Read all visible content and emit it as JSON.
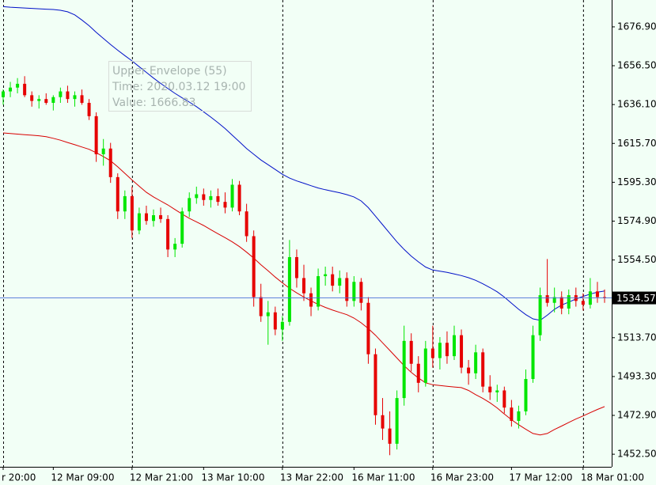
{
  "chart_data": {
    "type": "candlestick",
    "categories": [
      "r 20:00",
      null,
      null,
      null,
      null,
      null,
      null,
      "12 Mar 09:00",
      null,
      null,
      null,
      null,
      null,
      null,
      null,
      null,
      null,
      null,
      "12 Mar 21:00",
      null,
      null,
      null,
      null,
      null,
      null,
      null,
      null,
      null,
      "13 Mar 10:00",
      null,
      null,
      null,
      null,
      null,
      null,
      null,
      null,
      null,
      null,
      "13 Mar 22:00",
      null,
      null,
      null,
      null,
      null,
      null,
      null,
      null,
      null,
      "16 Mar 11:00",
      null,
      null,
      null,
      null,
      null,
      null,
      null,
      null,
      null,
      null,
      "16 Mar 23:00",
      null,
      null,
      null,
      null,
      null,
      null,
      null,
      null,
      null,
      null,
      "17 Mar 12:00",
      null,
      null,
      null,
      null,
      null,
      null,
      null,
      null,
      null,
      "18 Mar 01:00",
      null,
      null,
      null
    ],
    "open": [
      1640,
      1643,
      1645,
      1647,
      1641,
      1638,
      1639,
      1637,
      1640,
      1643,
      1639,
      1641,
      1637,
      1630,
      1610,
      1613,
      1598,
      1580,
      1588,
      1570,
      1579,
      1575,
      1578,
      1576,
      1560,
      1563,
      1580,
      1587,
      1589,
      1586,
      1588,
      1585,
      1582,
      1594,
      1580,
      1567,
      1535,
      1525,
      1527,
      1518,
      1522,
      1556,
      1545,
      1537,
      1530,
      1546,
      1547,
      1541,
      1545,
      1533,
      1543,
      1532,
      1505,
      1473,
      1466,
      1458,
      1482,
      1512,
      1500,
      1490,
      1508,
      1503,
      1511,
      1504,
      1515,
      1498,
      1495,
      1506,
      1488,
      1485,
      1486,
      1477,
      1470,
      1475,
      1492,
      1515,
      1536,
      1532,
      1535,
      1529,
      1536,
      1533,
      1531,
      1538,
      1535
    ],
    "high": [
      1644,
      1648,
      1650,
      1651,
      1643,
      1641,
      1642,
      1641,
      1645,
      1646,
      1643,
      1644,
      1639,
      1632,
      1618,
      1616,
      1600,
      1591,
      1593,
      1582,
      1583,
      1581,
      1582,
      1578,
      1566,
      1582,
      1590,
      1593,
      1592,
      1591,
      1592,
      1590,
      1597,
      1596,
      1584,
      1570,
      1542,
      1533,
      1530,
      1525,
      1565,
      1560,
      1552,
      1540,
      1550,
      1551,
      1551,
      1549,
      1548,
      1546,
      1545,
      1535,
      1508,
      1482,
      1475,
      1486,
      1520,
      1516,
      1504,
      1512,
      1520,
      1514,
      1517,
      1520,
      1518,
      1502,
      1510,
      1508,
      1494,
      1489,
      1488,
      1481,
      1478,
      1497,
      1520,
      1540,
      1555,
      1540,
      1538,
      1539,
      1540,
      1537,
      1545,
      1543,
      1539
    ],
    "low": [
      1636,
      1640,
      1642,
      1640,
      1635,
      1634,
      1636,
      1633,
      1637,
      1637,
      1635,
      1636,
      1628,
      1606,
      1604,
      1595,
      1576,
      1576,
      1566,
      1568,
      1573,
      1572,
      1574,
      1556,
      1556,
      1561,
      1577,
      1584,
      1583,
      1582,
      1583,
      1579,
      1580,
      1578,
      1564,
      1530,
      1522,
      1510,
      1515,
      1512,
      1520,
      1540,
      1533,
      1525,
      1528,
      1541,
      1538,
      1537,
      1530,
      1530,
      1528,
      1500,
      1468,
      1460,
      1452,
      1455,
      1478,
      1496,
      1485,
      1488,
      1498,
      1497,
      1500,
      1502,
      1495,
      1489,
      1492,
      1485,
      1481,
      1480,
      1474,
      1467,
      1466,
      1473,
      1490,
      1512,
      1530,
      1527,
      1526,
      1526,
      1530,
      1528,
      1529,
      1532,
      1532
    ],
    "close": [
      1643,
      1645,
      1647,
      1641,
      1638,
      1639,
      1637,
      1640,
      1643,
      1639,
      1641,
      1637,
      1630,
      1610,
      1613,
      1598,
      1580,
      1588,
      1570,
      1579,
      1575,
      1578,
      1576,
      1560,
      1563,
      1580,
      1587,
      1589,
      1586,
      1588,
      1585,
      1582,
      1594,
      1580,
      1567,
      1535,
      1525,
      1527,
      1518,
      1522,
      1556,
      1545,
      1537,
      1530,
      1546,
      1547,
      1541,
      1545,
      1533,
      1543,
      1532,
      1505,
      1473,
      1466,
      1458,
      1482,
      1512,
      1500,
      1490,
      1508,
      1503,
      1511,
      1504,
      1515,
      1498,
      1495,
      1506,
      1488,
      1485,
      1486,
      1477,
      1470,
      1475,
      1492,
      1515,
      1536,
      1532,
      1535,
      1529,
      1536,
      1533,
      1531,
      1538,
      1535,
      1534.57
    ],
    "up_color": "#00e600",
    "down_color": "#e60000",
    "lines": [
      {
        "color": "#0010c8",
        "values": [
          1687.5,
          1687.2,
          1687,
          1686.8,
          1686.6,
          1686.4,
          1686.2,
          1686,
          1685.6,
          1684.8,
          1683.2,
          1680.5,
          1677.5,
          1674,
          1670.8,
          1667.6,
          1664.6,
          1661.8,
          1659,
          1656,
          1653,
          1650,
          1647.2,
          1644.5,
          1642,
          1639.6,
          1637.4,
          1635,
          1632.3,
          1629.5,
          1626.6,
          1623.5,
          1620,
          1616.5,
          1613,
          1610,
          1607,
          1604.5,
          1602,
          1599.5,
          1597.5,
          1596,
          1594.8,
          1593.5,
          1592.3,
          1591.4,
          1590.6,
          1589.8,
          1588.8,
          1587.6,
          1585.5,
          1582,
          1577.5,
          1573,
          1568.5,
          1564,
          1560,
          1556.5,
          1553.5,
          1550.8,
          1549.2,
          1548.6,
          1548,
          1547.2,
          1546.3,
          1545.2,
          1543.8,
          1542,
          1540,
          1537.8,
          1535,
          1531.8,
          1528.6,
          1525.8,
          1523.6,
          1522.8,
          1525.5,
          1528.6,
          1530.8,
          1532.4,
          1534,
          1535.4,
          1536.6,
          1537.6,
          1538.2
        ]
      },
      {
        "color": "#d80000",
        "values": [
          1621.2,
          1620.9,
          1620.6,
          1620.3,
          1620,
          1619.7,
          1619.2,
          1618.4,
          1617.4,
          1616.2,
          1615,
          1613.8,
          1612.6,
          1610.8,
          1608.8,
          1606.6,
          1603.4,
          1600,
          1596.5,
          1593.2,
          1590,
          1587.6,
          1585.5,
          1583.4,
          1581,
          1578.6,
          1576.4,
          1574.5,
          1572.6,
          1570.4,
          1568.3,
          1566.2,
          1564,
          1561.5,
          1558.6,
          1555.5,
          1552,
          1548.8,
          1545.5,
          1542.5,
          1539.6,
          1537.2,
          1535,
          1533,
          1531.2,
          1529.6,
          1528.2,
          1527,
          1525.8,
          1524,
          1521.5,
          1518.5,
          1515,
          1511,
          1507,
          1503,
          1499,
          1495.5,
          1492.5,
          1490,
          1489,
          1488.6,
          1488.2,
          1487.8,
          1487.5,
          1486,
          1483.8,
          1481.8,
          1479.5,
          1476.8,
          1473.6,
          1470.6,
          1468,
          1465.6,
          1463.4,
          1462.6,
          1463.4,
          1465.5,
          1467.3,
          1469.2,
          1471,
          1472.6,
          1474.3,
          1476,
          1477.5
        ]
      }
    ],
    "ylim": [
      1445.9,
      1691.0
    ],
    "yticks": [
      {
        "value": 1676.9,
        "label": "1676.90"
      },
      {
        "value": 1656.5,
        "label": "1656.50"
      },
      {
        "value": 1636.1,
        "label": "1636.10"
      },
      {
        "value": 1615.7,
        "label": "1615.70"
      },
      {
        "value": 1595.3,
        "label": "1595.30"
      },
      {
        "value": 1574.9,
        "label": "1574.90"
      },
      {
        "value": 1554.5,
        "label": "1554.50"
      },
      {
        "value": 1513.7,
        "label": "1513.70"
      },
      {
        "value": 1493.3,
        "label": "1493.30"
      },
      {
        "value": 1472.9,
        "label": "1472.90"
      },
      {
        "value": 1452.5,
        "label": "1452.50"
      }
    ],
    "current_price": 1534.57,
    "current_price_color": "#4a6fd8",
    "tooltip": [
      "Upper Envelope (55)",
      "Time: 2020.03.12 19:00",
      "Value: 1666.83"
    ]
  }
}
